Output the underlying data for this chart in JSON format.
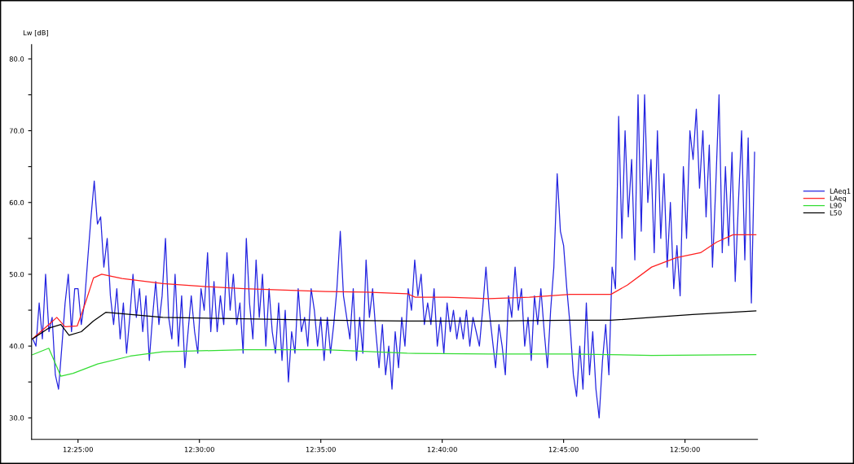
{
  "chart_data": {
    "type": "line",
    "ylabel": "Lw [dB]",
    "xlim": [
      12.3848,
      12.8831
    ],
    "xticks": [
      {
        "value": 12.416667,
        "label": "12:25:00"
      },
      {
        "value": 12.5,
        "label": "12:30:00"
      },
      {
        "value": 12.583333,
        "label": "12:35:00"
      },
      {
        "value": 12.666667,
        "label": "12:40:00"
      },
      {
        "value": 12.75,
        "label": "12:45:00"
      },
      {
        "value": 12.833333,
        "label": "12:50:00"
      }
    ],
    "ylim": [
      27,
      82
    ],
    "yticks": [
      {
        "value": 30,
        "label": "30.0"
      },
      {
        "value": 35,
        "label": null
      },
      {
        "value": 40,
        "label": "40.0"
      },
      {
        "value": 45,
        "label": null
      },
      {
        "value": 50,
        "label": "50.0"
      },
      {
        "value": 55,
        "label": null
      },
      {
        "value": 60,
        "label": "60.0"
      },
      {
        "value": 65,
        "label": null
      },
      {
        "value": 70,
        "label": "70.0"
      },
      {
        "value": 75,
        "label": null
      },
      {
        "value": 80,
        "label": "80.0"
      }
    ],
    "grid": false,
    "legend": "right",
    "marker": "none",
    "line_style": "solid",
    "series": [
      {
        "name": "LAeq1",
        "color": "#2424e0",
        "x": [
          12.3856,
          12.3878,
          12.39,
          12.3922,
          12.3944,
          12.3967,
          12.3989,
          12.4011,
          12.4033,
          12.4056,
          12.4078,
          12.41,
          12.4122,
          12.4144,
          12.4167,
          12.4189,
          12.4211,
          12.4233,
          12.4256,
          12.4278,
          12.43,
          12.4322,
          12.4344,
          12.4367,
          12.4389,
          12.4411,
          12.4433,
          12.4456,
          12.4478,
          12.45,
          12.4522,
          12.4544,
          12.4567,
          12.4589,
          12.4611,
          12.4633,
          12.4656,
          12.4678,
          12.47,
          12.4722,
          12.4744,
          12.4767,
          12.4789,
          12.4811,
          12.4833,
          12.4856,
          12.4878,
          12.49,
          12.4922,
          12.4944,
          12.4967,
          12.4989,
          12.5011,
          12.5033,
          12.5056,
          12.5078,
          12.51,
          12.5122,
          12.5144,
          12.5167,
          12.5189,
          12.5211,
          12.5233,
          12.5256,
          12.5278,
          12.53,
          12.5322,
          12.5344,
          12.5367,
          12.5389,
          12.5411,
          12.5433,
          12.5456,
          12.5478,
          12.55,
          12.5522,
          12.5544,
          12.5567,
          12.5589,
          12.5611,
          12.5633,
          12.5656,
          12.5678,
          12.57,
          12.5722,
          12.5744,
          12.5767,
          12.5789,
          12.5811,
          12.5833,
          12.5856,
          12.5878,
          12.59,
          12.5922,
          12.5944,
          12.5967,
          12.5989,
          12.6011,
          12.6033,
          12.6056,
          12.6078,
          12.61,
          12.6122,
          12.6144,
          12.6167,
          12.6189,
          12.6211,
          12.6233,
          12.6256,
          12.6278,
          12.63,
          12.6322,
          12.6344,
          12.6367,
          12.6389,
          12.6411,
          12.6433,
          12.6456,
          12.6478,
          12.65,
          12.6522,
          12.6544,
          12.6567,
          12.6589,
          12.6611,
          12.6633,
          12.6656,
          12.6678,
          12.67,
          12.6722,
          12.6744,
          12.6767,
          12.6789,
          12.6811,
          12.6833,
          12.6856,
          12.6878,
          12.69,
          12.6922,
          12.6944,
          12.6967,
          12.6989,
          12.7011,
          12.7033,
          12.7056,
          12.7078,
          12.71,
          12.7122,
          12.7144,
          12.7167,
          12.7189,
          12.7211,
          12.7233,
          12.7256,
          12.7278,
          12.73,
          12.7322,
          12.7344,
          12.7367,
          12.7389,
          12.7411,
          12.7433,
          12.7456,
          12.7478,
          12.75,
          12.7522,
          12.7544,
          12.7567,
          12.7589,
          12.7611,
          12.7633,
          12.7656,
          12.7678,
          12.77,
          12.7722,
          12.7744,
          12.7767,
          12.7789,
          12.7811,
          12.7833,
          12.7856,
          12.7878,
          12.79,
          12.7922,
          12.7944,
          12.7967,
          12.7989,
          12.8011,
          12.8033,
          12.8056,
          12.8078,
          12.81,
          12.8122,
          12.8144,
          12.8167,
          12.8189,
          12.8211,
          12.8233,
          12.8256,
          12.8278,
          12.83,
          12.8322,
          12.8344,
          12.8367,
          12.8389,
          12.8411,
          12.8433,
          12.8456,
          12.8478,
          12.85,
          12.8522,
          12.8544,
          12.8567,
          12.8589,
          12.8611,
          12.8633,
          12.8656,
          12.8678,
          12.87,
          12.8722,
          12.8744,
          12.8767,
          12.8789,
          12.8811
        ],
        "values": [
          41,
          40,
          46,
          41,
          50,
          42,
          44,
          36,
          34,
          40,
          46,
          50,
          42,
          48,
          48,
          43,
          46,
          52,
          58,
          63,
          57,
          58,
          51,
          55,
          47,
          43,
          48,
          41,
          46,
          39,
          44,
          50,
          44,
          48,
          42,
          47,
          38,
          44,
          49,
          43,
          47,
          55,
          44,
          41,
          50,
          40,
          47,
          37,
          42,
          47,
          42,
          39,
          48,
          45,
          53,
          42,
          49,
          42,
          47,
          43,
          53,
          45,
          50,
          43,
          46,
          39,
          55,
          46,
          41,
          52,
          44,
          50,
          40,
          48,
          42,
          39,
          46,
          38,
          45,
          35,
          42,
          39,
          48,
          42,
          44,
          40,
          48,
          45,
          40,
          44,
          38,
          44,
          39,
          43,
          48,
          56,
          47,
          44,
          41,
          48,
          38,
          44,
          39,
          52,
          44,
          48,
          42,
          37,
          43,
          36,
          40,
          34,
          42,
          37,
          44,
          40,
          48,
          45,
          52,
          47,
          50,
          43,
          46,
          43,
          48,
          40,
          44,
          39,
          46,
          42,
          45,
          41,
          44,
          41,
          45,
          40,
          44,
          42,
          40,
          45,
          51,
          45,
          41,
          37,
          43,
          40,
          36,
          47,
          44,
          51,
          45,
          48,
          40,
          44,
          38,
          47,
          43,
          48,
          42,
          37,
          45,
          51,
          64,
          56,
          54,
          48,
          43,
          36,
          33,
          40,
          34,
          46,
          36,
          42,
          34,
          30,
          38,
          43,
          36,
          51,
          48,
          72,
          55,
          70,
          58,
          66,
          52,
          75,
          56,
          75,
          60,
          66,
          53,
          70,
          55,
          64,
          51,
          60,
          48,
          54,
          47,
          65,
          55,
          70,
          66,
          73,
          62,
          70,
          58,
          68,
          51,
          62,
          75,
          53,
          65,
          54,
          67,
          49,
          60,
          70,
          52,
          69,
          46,
          67
        ]
      },
      {
        "name": "LAeq",
        "color": "#ff2020",
        "x": [
          12.3854,
          12.3966,
          12.4021,
          12.4077,
          12.4161,
          12.4217,
          12.4273,
          12.4329,
          12.4469,
          12.4749,
          12.5028,
          12.5308,
          12.5588,
          12.5867,
          12.6147,
          12.6426,
          12.6482,
          12.6706,
          12.6986,
          12.7265,
          12.7545,
          12.7825,
          12.7937,
          12.8104,
          12.8272,
          12.844,
          12.8552,
          12.8663,
          12.882
        ],
        "values": [
          41,
          43,
          44,
          42.7,
          42.8,
          46,
          49.5,
          50,
          49.4,
          48.7,
          48.3,
          48,
          47.8,
          47.6,
          47.5,
          47.3,
          46.8,
          46.8,
          46.6,
          46.8,
          47.2,
          47.2,
          48.5,
          51,
          52.3,
          53,
          54.5,
          55.5,
          55.5
        ]
      },
      {
        "name": "L90",
        "color": "#33dd33",
        "x": [
          12.3854,
          12.3966,
          12.4049,
          12.4133,
          12.4301,
          12.4525,
          12.4749,
          12.5308,
          12.5867,
          12.6426,
          12.6986,
          12.7545,
          12.8104,
          12.882
        ],
        "values": [
          38.8,
          39.7,
          35.8,
          36.2,
          37.5,
          38.6,
          39.2,
          39.5,
          39.5,
          39,
          38.9,
          38.9,
          38.7,
          38.8
        ]
      },
      {
        "name": "L50",
        "color": "#000000",
        "x": [
          12.3854,
          12.3966,
          12.4049,
          12.4105,
          12.4189,
          12.4273,
          12.4357,
          12.4469,
          12.4749,
          12.5308,
          12.5867,
          12.6426,
          12.6986,
          12.7545,
          12.7825,
          12.8104,
          12.8384,
          12.882
        ],
        "values": [
          41,
          42.5,
          43,
          41.5,
          42,
          43.5,
          44.7,
          44.5,
          44,
          43.8,
          43.6,
          43.5,
          43.5,
          43.6,
          43.6,
          44,
          44.4,
          44.9
        ]
      }
    ]
  }
}
